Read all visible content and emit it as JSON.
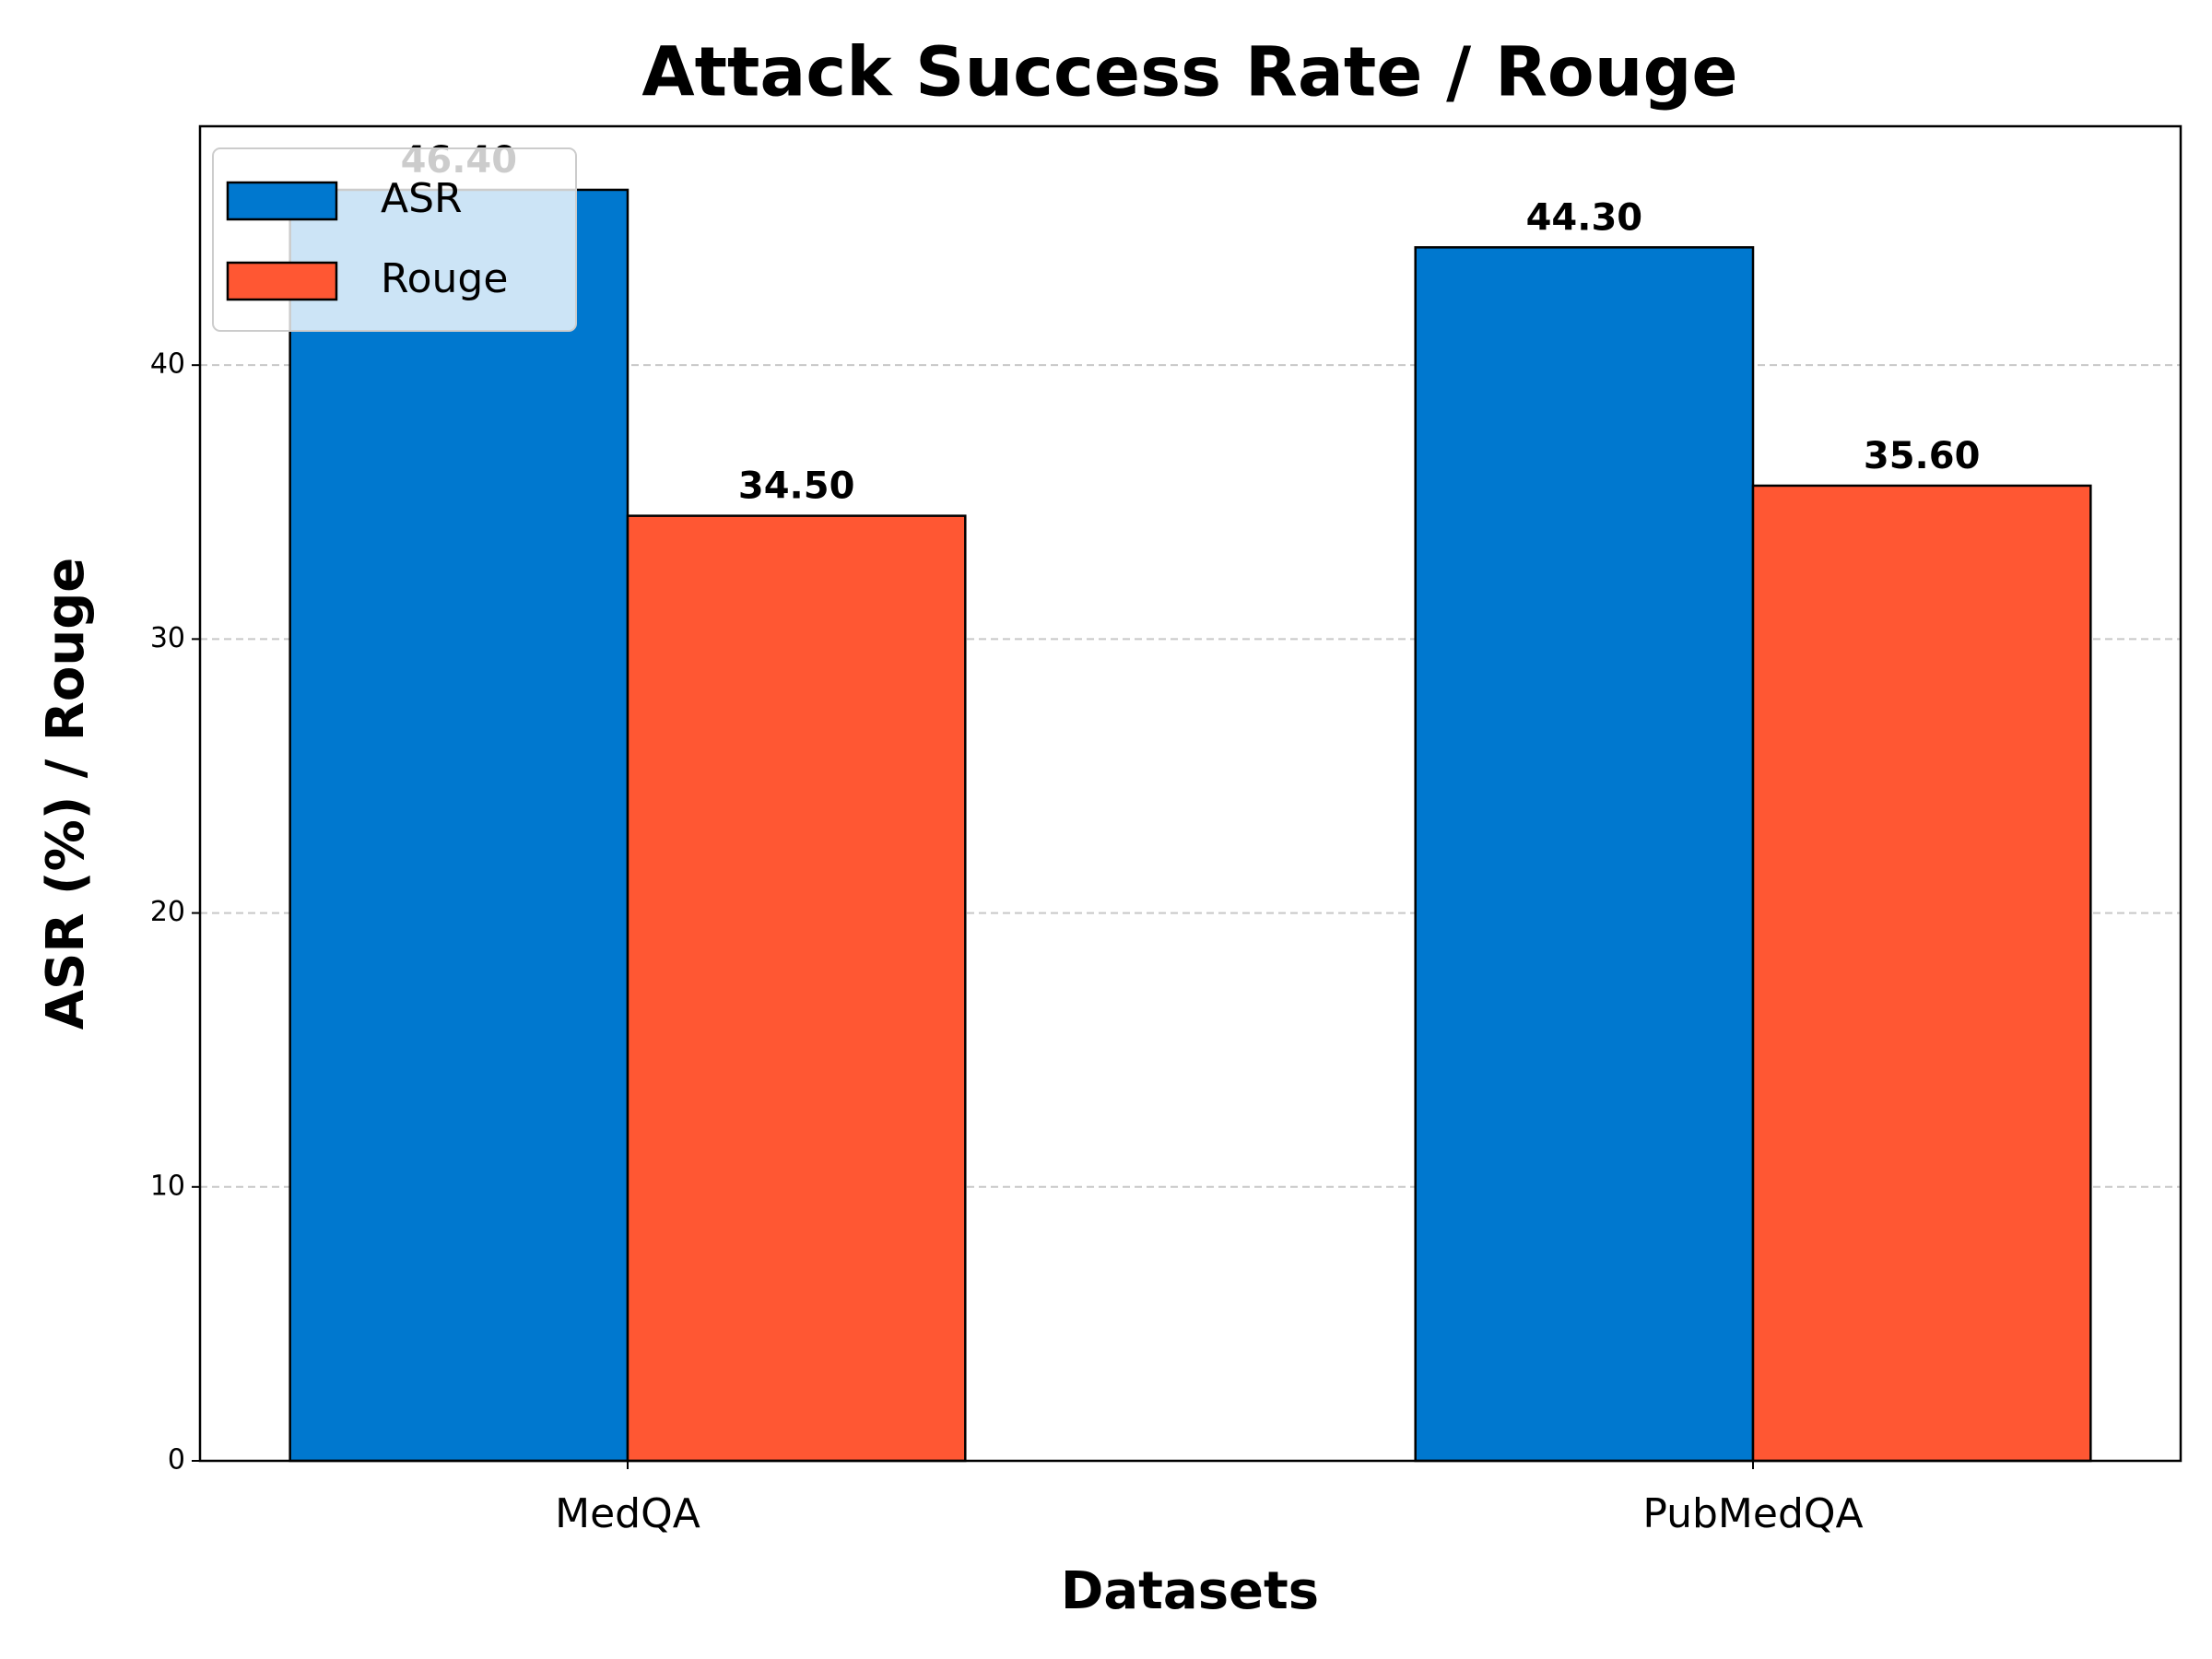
{
  "chart_data": {
    "type": "bar",
    "title": "Attack Success Rate / Rouge",
    "x_label": "Datasets",
    "y_label": "ASR (%) / Rouge",
    "categories": [
      "MedQA",
      "PubMedQA"
    ],
    "series": [
      {
        "name": "ASR",
        "color": "#0078cf",
        "values": [
          46.4,
          44.3
        ],
        "value_labels": [
          "46.40",
          "44.30"
        ]
      },
      {
        "name": "Rouge",
        "color": "#ff5733",
        "values": [
          34.5,
          35.6
        ],
        "value_labels": [
          "34.50",
          "35.60"
        ]
      }
    ],
    "ylim": [
      0,
      48.72
    ],
    "yticks": [
      0,
      10,
      20,
      30,
      40
    ],
    "grid": true,
    "legend": "upper left"
  }
}
